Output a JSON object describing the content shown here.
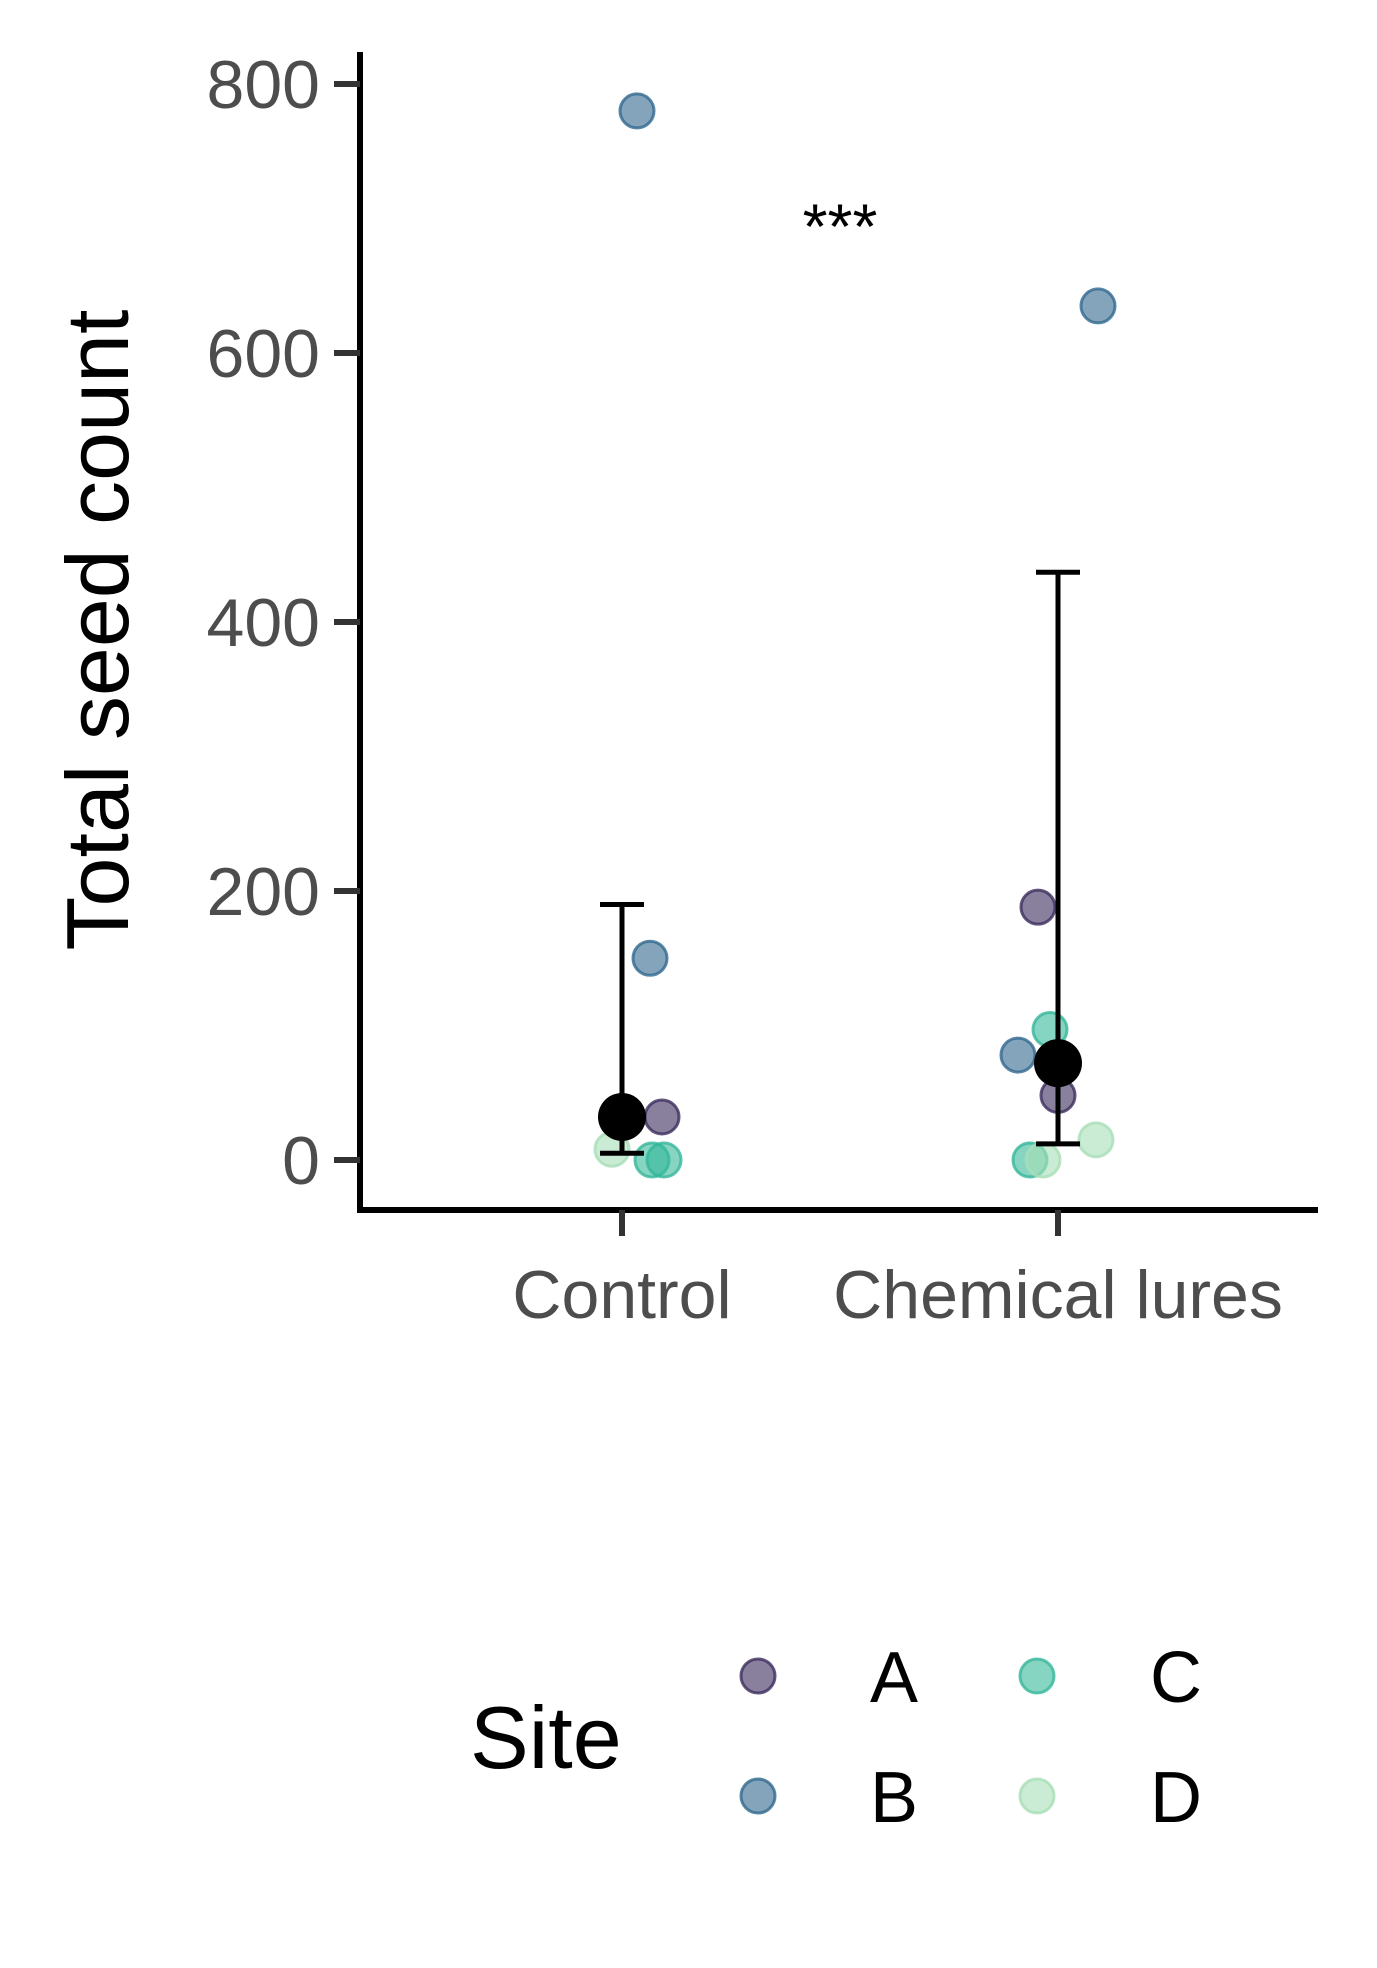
{
  "chart_data": {
    "type": "scatter",
    "title": "",
    "xlabel": "",
    "ylabel": "Total seed count",
    "categories": [
      "Control",
      "Chemical lures"
    ],
    "ylim": [
      -40,
      810
    ],
    "yticks": [
      0,
      200,
      400,
      600,
      800
    ],
    "grid": false,
    "legend": {
      "title": "Site",
      "position": "bottom",
      "entries": [
        {
          "label": "A",
          "color": "#3b2c5c"
        },
        {
          "label": "B",
          "color": "#31688e"
        },
        {
          "label": "C",
          "color": "#35b79a"
        },
        {
          "label": "D",
          "color": "#a8dfb8"
        }
      ]
    },
    "points": [
      {
        "category": "Control",
        "site": "B",
        "value": 780
      },
      {
        "category": "Control",
        "site": "B",
        "value": 150
      },
      {
        "category": "Control",
        "site": "A",
        "value": 32
      },
      {
        "category": "Control",
        "site": "D",
        "value": 8
      },
      {
        "category": "Control",
        "site": "C",
        "value": 0
      },
      {
        "category": "Control",
        "site": "C",
        "value": 0
      },
      {
        "category": "Chemical lures",
        "site": "B",
        "value": 635
      },
      {
        "category": "Chemical lures",
        "site": "A",
        "value": 188
      },
      {
        "category": "Chemical lures",
        "site": "C",
        "value": 97
      },
      {
        "category": "Chemical lures",
        "site": "B",
        "value": 78
      },
      {
        "category": "Chemical lures",
        "site": "A",
        "value": 48
      },
      {
        "category": "Chemical lures",
        "site": "D",
        "value": 15
      },
      {
        "category": "Chemical lures",
        "site": "C",
        "value": 0
      },
      {
        "category": "Chemical lures",
        "site": "D",
        "value": 0
      }
    ],
    "summary": [
      {
        "category": "Control",
        "mean": 32,
        "lower": 5,
        "upper": 190
      },
      {
        "category": "Chemical lures",
        "mean": 72,
        "lower": 12,
        "upper": 437
      }
    ],
    "annotations": [
      {
        "text": "***",
        "x_between": [
          "Control",
          "Chemical lures"
        ],
        "y": 700
      }
    ]
  }
}
